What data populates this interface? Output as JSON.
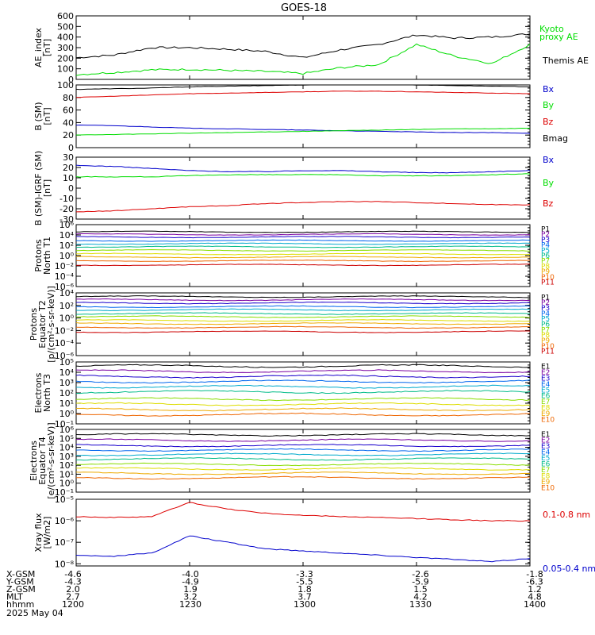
{
  "title": "GOES-18",
  "date_label": "2025 May 04",
  "colors": {
    "black": "#000000",
    "green": "#00dd00",
    "blue": "#0000cc",
    "red": "#dd0000",
    "p": [
      "#000000",
      "#7a00a0",
      "#1a00cc",
      "#0066ee",
      "#00aacc",
      "#00bb88",
      "#88dd00",
      "#dddd00",
      "#eeaa00",
      "#ee6600",
      "#cc0000"
    ]
  },
  "panels": [
    {
      "id": "ae",
      "ylabel": [
        "AE_index",
        "[nT]"
      ],
      "yscale": "linear",
      "ylim": [
        0,
        600
      ],
      "ticks": [
        "0",
        "100",
        "200",
        "300",
        "400",
        "500",
        "600"
      ],
      "tick_values": [
        0,
        100,
        200,
        300,
        400,
        500,
        600
      ],
      "legend": [
        {
          "text": "Kyoto",
          "color": "#00dd00"
        },
        {
          "text": "proxy AE",
          "color": "#00dd00"
        },
        {
          "text": "Themis AE",
          "color": "#000000"
        }
      ]
    },
    {
      "id": "bsm",
      "ylabel": [
        "B (SM)",
        "[nT]"
      ],
      "yscale": "linear",
      "ylim": [
        0,
        100
      ],
      "ticks": [
        "0",
        "20",
        "40",
        "60",
        "80",
        "100"
      ],
      "tick_values": [
        0,
        20,
        40,
        60,
        80,
        100
      ],
      "legend": [
        {
          "text": "Bx",
          "color": "#0000cc"
        },
        {
          "text": "By",
          "color": "#00dd00"
        },
        {
          "text": "Bz",
          "color": "#dd0000"
        },
        {
          "text": "Bmag",
          "color": "#000000"
        }
      ]
    },
    {
      "id": "bigrf",
      "ylabel": [
        "B (SM)-IGRF (SM)",
        "[nT]"
      ],
      "yscale": "linear",
      "ylim": [
        -30,
        30
      ],
      "ticks": [
        "-30",
        "-20",
        "-10",
        "0",
        "10",
        "20",
        "30"
      ],
      "tick_values": [
        -30,
        -20,
        -10,
        0,
        10,
        20,
        30
      ],
      "legend": [
        {
          "text": "Bx",
          "color": "#0000cc"
        },
        {
          "text": "By",
          "color": "#00dd00"
        },
        {
          "text": "Bz",
          "color": "#dd0000"
        }
      ]
    },
    {
      "id": "pn1",
      "ylabel": [
        "Protons",
        "North T1"
      ],
      "yscale": "log",
      "ylim": [
        -6,
        6
      ],
      "ticks": [
        "10⁻⁶",
        "10⁻⁴",
        "10⁻²",
        "10⁰",
        "10²",
        "10⁴",
        "10⁶"
      ],
      "tick_values": [
        -6,
        -4,
        -2,
        0,
        2,
        4,
        6
      ],
      "legend_small": [
        "P1",
        "P2",
        "P3",
        "P4",
        "P5",
        "P6",
        "P7",
        "P8",
        "P9",
        "P10",
        "P11"
      ]
    },
    {
      "id": "pe2",
      "ylabel": [
        "Protons",
        "Equator T2",
        "[p/(cm²-s-sr-keV)]"
      ],
      "yscale": "log",
      "ylim": [
        -6,
        4
      ],
      "ticks": [
        "10⁻⁶",
        "10⁻⁴",
        "10⁻²",
        "10⁰",
        "10²",
        "10⁴"
      ],
      "tick_values": [
        -6,
        -4,
        -2,
        0,
        2,
        4
      ],
      "legend_small": [
        "P1",
        "P2",
        "P3",
        "P4",
        "P5",
        "P6",
        "P7",
        "P8",
        "P9",
        "P10",
        "P11"
      ]
    },
    {
      "id": "en3",
      "ylabel": [
        "Electrons",
        "North T3"
      ],
      "yscale": "log",
      "ylim": [
        -1,
        5
      ],
      "ticks": [
        "10⁻¹",
        "10⁰",
        "10¹",
        "10²",
        "10³",
        "10⁴",
        "10⁵"
      ],
      "tick_values": [
        -1,
        0,
        1,
        2,
        3,
        4,
        5
      ],
      "legend_small": [
        "E1",
        "E2",
        "E3",
        "E4",
        "E5",
        "E6",
        "E7",
        "E8",
        "E9",
        "E10"
      ]
    },
    {
      "id": "ee4",
      "ylabel": [
        "Electrons",
        "Equator T4",
        "[e/(cm²-s-sr-keV)]"
      ],
      "yscale": "log",
      "ylim": [
        -1,
        6
      ],
      "ticks": [
        "10⁻¹",
        "10⁰",
        "10¹",
        "10²",
        "10³",
        "10⁴",
        "10⁵",
        "10⁶"
      ],
      "tick_values": [
        -1,
        0,
        1,
        2,
        3,
        4,
        5,
        6
      ],
      "legend_small": [
        "E1",
        "E2",
        "E3",
        "E4",
        "E5",
        "E6",
        "E7",
        "E8",
        "E9",
        "E10"
      ]
    },
    {
      "id": "xray",
      "ylabel": [
        "Xray flux",
        "[W/m2]"
      ],
      "yscale": "log",
      "ylim": [
        -8.1,
        -5
      ],
      "ticks": [
        "10⁻⁸",
        "10⁻⁷",
        "10⁻⁶",
        "10⁻⁵"
      ],
      "tick_values": [
        -8,
        -7,
        -6,
        -5
      ],
      "legend": [
        {
          "text": "0.1-0.8 nm",
          "color": "#dd0000"
        },
        {
          "text": "0.05-0.4 nm",
          "color": "#0000cc"
        }
      ]
    }
  ],
  "x_axis": {
    "rows": [
      {
        "label": "X-GSM",
        "values": [
          "-4.6",
          "-4.0",
          "-3.3",
          "-2.6",
          "-1.8"
        ]
      },
      {
        "label": "Y-GSM",
        "values": [
          "-4.3",
          "-4.9",
          "-5.5",
          "-5.9",
          "-6.3"
        ]
      },
      {
        "label": "Z-GSM",
        "values": [
          "2.0",
          "1.9",
          "1.8",
          "1.5",
          "1.2"
        ]
      },
      {
        "label": "MLT",
        "values": [
          "2.7",
          "3.2",
          "3.7",
          "4.2",
          "4.8"
        ]
      },
      {
        "label": "hhmm",
        "values": [
          "1200",
          "1230",
          "1300",
          "1330",
          "1400"
        ]
      }
    ]
  },
  "chart_data": {
    "type": "line",
    "title": "GOES-18",
    "x_unit": "hhmm",
    "x": [
      1200,
      1210,
      1220,
      1230,
      1240,
      1250,
      1300,
      1310,
      1320,
      1330,
      1340,
      1350,
      1400
    ],
    "panels": {
      "ae": {
        "series": [
          {
            "name": "Themis AE",
            "color": "#000000",
            "values": [
              205,
              230,
              300,
              300,
              285,
              265,
              205,
              280,
              330,
              420,
              390,
              400,
              430
            ]
          },
          {
            "name": "Kyoto proxy AE",
            "color": "#00dd00",
            "values": [
              45,
              65,
              90,
              95,
              85,
              75,
              55,
              110,
              140,
              330,
              220,
              150,
              330
            ]
          }
        ]
      },
      "bsm": {
        "series": [
          {
            "name": "Bmag",
            "color": "#000000",
            "values": [
              93,
              94,
              95,
              97,
              98,
              99,
              100,
              101,
              101,
              100,
              99,
              98,
              97
            ]
          },
          {
            "name": "Bz",
            "color": "#dd0000",
            "values": [
              80,
              82,
              84,
              86,
              87,
              88,
              89,
              90,
              90,
              89,
              88,
              87,
              86
            ]
          },
          {
            "name": "Bx",
            "color": "#0000cc",
            "values": [
              36,
              35,
              33,
              31,
              30,
              29,
              28,
              27,
              26,
              25,
              24,
              24,
              23
            ]
          },
          {
            "name": "By",
            "color": "#00dd00",
            "values": [
              20,
              21,
              22,
              23,
              24,
              25,
              26,
              27,
              28,
              29,
              30,
              30,
              31
            ]
          }
        ]
      },
      "bigrf": {
        "series": [
          {
            "name": "Bx",
            "color": "#0000cc",
            "values": [
              22,
              21,
              19,
              17,
              16,
              16,
              17,
              17,
              16,
              15,
              15,
              16,
              17
            ]
          },
          {
            "name": "By",
            "color": "#00dd00",
            "values": [
              11,
              11,
              11,
              12,
              13,
              13,
              13,
              13,
              12,
              12,
              12,
              13,
              14
            ]
          },
          {
            "name": "Bz",
            "color": "#dd0000",
            "values": [
              -23,
              -22,
              -20,
              -18,
              -17,
              -15,
              -14,
              -13,
              -13,
              -14,
              -15,
              -16,
              -16
            ]
          }
        ]
      },
      "pn1": {
        "series_log10": [
          4.6,
          4.1,
          3.6,
          2.9,
          2.3,
          1.7,
          1.0,
          0.3,
          -0.3,
          -1.0,
          -1.8
        ]
      },
      "pe2": {
        "series_log10": [
          3.4,
          2.9,
          2.4,
          1.8,
          1.3,
          0.7,
          0.2,
          -0.4,
          -0.9,
          -1.5,
          -2.2
        ]
      },
      "en3": {
        "series_log10": [
          4.6,
          4.1,
          3.6,
          3.1,
          2.6,
          2.1,
          1.4,
          0.9,
          0.4,
          -0.1
        ]
      },
      "ee4": {
        "series_log10": [
          5.4,
          4.8,
          4.2,
          3.7,
          3.2,
          2.7,
          2.1,
          1.6,
          1.1,
          0.6
        ]
      },
      "xray": {
        "series": [
          {
            "name": "0.1-0.8 nm",
            "color": "#dd0000",
            "values_log10": [
              -5.8,
              -5.85,
              -5.8,
              -5.15,
              -5.45,
              -5.65,
              -5.75,
              -5.8,
              -5.85,
              -5.9,
              -5.95,
              -6.0,
              -6.0
            ]
          },
          {
            "name": "0.05-0.4 nm",
            "color": "#0000cc",
            "values_log10": [
              -7.6,
              -7.65,
              -7.5,
              -6.7,
              -7.0,
              -7.3,
              -7.4,
              -7.5,
              -7.6,
              -7.7,
              -7.8,
              -7.9,
              -7.75
            ]
          }
        ]
      }
    }
  }
}
